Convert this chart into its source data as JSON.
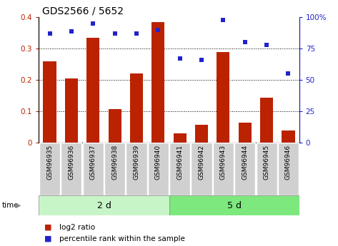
{
  "title": "GDS2566 / 5652",
  "categories": [
    "GSM96935",
    "GSM96936",
    "GSM96937",
    "GSM96938",
    "GSM96939",
    "GSM96940",
    "GSM96941",
    "GSM96942",
    "GSM96943",
    "GSM96944",
    "GSM96945",
    "GSM96946"
  ],
  "log2_ratio": [
    0.26,
    0.205,
    0.335,
    0.108,
    0.22,
    0.385,
    0.03,
    0.058,
    0.29,
    0.063,
    0.143,
    0.038
  ],
  "percentile_rank": [
    87,
    89,
    95,
    87,
    87,
    90,
    67,
    66,
    98,
    80,
    78,
    55
  ],
  "group1_label": "2 d",
  "group2_label": "5 d",
  "group1_count": 6,
  "group2_count": 6,
  "bar_color": "#bb2200",
  "dot_color": "#2222cc",
  "ylim_left": [
    0,
    0.4
  ],
  "ylim_right": [
    0,
    100
  ],
  "yticks_left": [
    0,
    0.1,
    0.2,
    0.3,
    0.4
  ],
  "yticks_right": [
    0,
    25,
    50,
    75,
    100
  ],
  "ytick_labels_left": [
    "0",
    "0.1",
    "0.2",
    "0.3",
    "0.4"
  ],
  "ytick_labels_right": [
    "0",
    "25",
    "50",
    "75",
    "100%"
  ],
  "legend_bar": "log2 ratio",
  "legend_dot": "percentile rank within the sample",
  "group_bg1": "#c8f5c8",
  "group_bg2": "#7de87d",
  "tick_label_bg": "#d0d0d0",
  "time_label": "time",
  "bar_width": 0.6,
  "dot_size": 22
}
